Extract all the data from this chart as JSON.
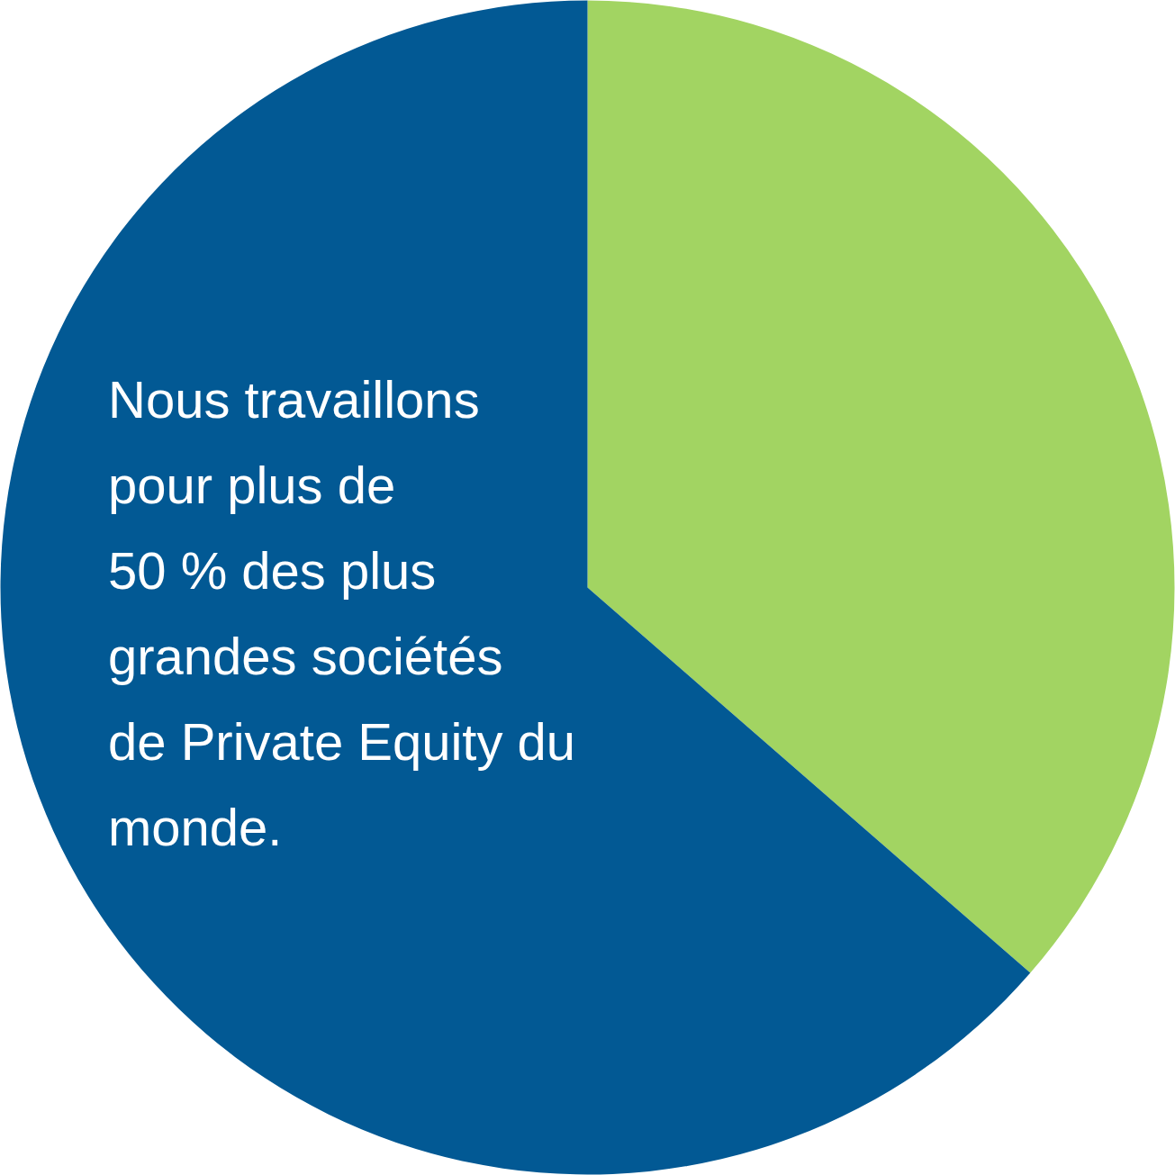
{
  "chart_data": {
    "type": "pie",
    "categories": [
      null,
      null
    ],
    "values": [
      36.4,
      63.6
    ],
    "colors": [
      "#a2d462",
      "#025994"
    ],
    "annotations": [
      "Nous travaillons\npour plus de\n50 % des plus\ngrandes sociétés\nde Private Equity du\nmonde."
    ],
    "legend": false
  }
}
